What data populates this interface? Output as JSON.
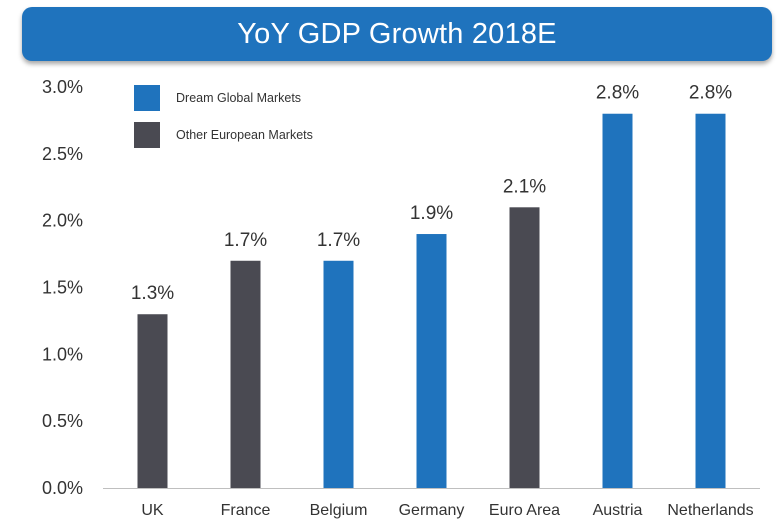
{
  "colors": {
    "dream": "#1f73bd",
    "other": "#4a4a52",
    "title_bg": "#1f73bd",
    "axis": "#bfbfbf"
  },
  "chart_data": {
    "type": "bar",
    "title": "YoY GDP Growth 2018E",
    "categories": [
      "UK",
      "France",
      "Belgium",
      "Germany",
      "Euro Area",
      "Austria",
      "Netherlands"
    ],
    "values": [
      1.3,
      1.7,
      1.7,
      1.9,
      2.1,
      2.8,
      2.8
    ],
    "value_labels": [
      "1.3%",
      "1.7%",
      "1.7%",
      "1.9%",
      "2.1%",
      "2.8%",
      "2.8%"
    ],
    "groups": [
      "other",
      "other",
      "dream",
      "dream",
      "other",
      "dream",
      "dream"
    ],
    "series": [
      {
        "name": "Dream Global Markets",
        "key": "dream"
      },
      {
        "name": "Other European Markets",
        "key": "other"
      }
    ],
    "ylim": [
      0,
      3.0
    ],
    "yticks": [
      0,
      0.5,
      1.0,
      1.5,
      2.0,
      2.5,
      3.0
    ],
    "ytick_labels": [
      "0.0%",
      "0.5%",
      "1.0%",
      "1.5%",
      "2.0%",
      "2.5%",
      "3.0%"
    ],
    "xlabel": "",
    "ylabel": "",
    "legend_position": "top-left",
    "grid": false
  }
}
